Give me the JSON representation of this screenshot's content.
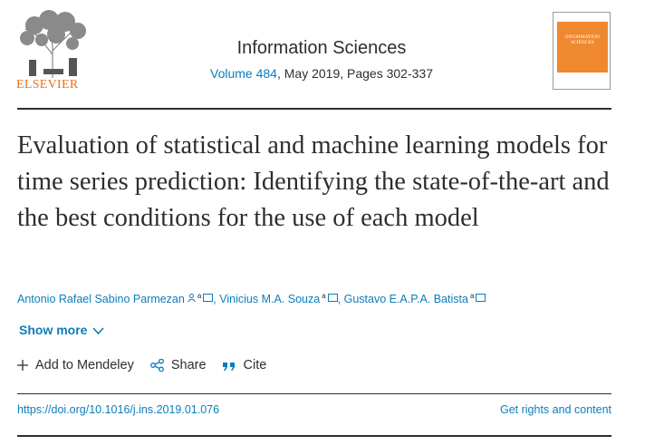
{
  "publisher": {
    "name": "ELSEVIER",
    "brand_color": "#e9711c"
  },
  "journal": {
    "title": "Information Sciences",
    "volume_link": "Volume 484",
    "details": ", May 2019, Pages 302-337",
    "cover_title": "INFORMATION SCIENCES"
  },
  "article": {
    "title": "Evaluation of statistical and machine learning models for time series prediction: Identifying the state-of-the-art and the best conditions for the use of each model"
  },
  "authors": [
    {
      "name": "Antonio Rafael Sabino Parmezan",
      "affiliation": "a",
      "corresponding": true
    },
    {
      "name": "Vinicius M.A. Souza",
      "affiliation": "a",
      "corresponding": false
    },
    {
      "name": "Gustavo E.A.P.A. Batista",
      "affiliation": "a",
      "corresponding": false
    }
  ],
  "show_more": "Show more",
  "actions": {
    "add_to_mendeley": "Add to Mendeley",
    "share": "Share",
    "cite": "Cite"
  },
  "doi": "https://doi.org/10.1016/j.ins.2019.01.076",
  "rights": "Get rights and content",
  "colors": {
    "link": "#0c7dbb",
    "text": "#2e2e2e"
  }
}
